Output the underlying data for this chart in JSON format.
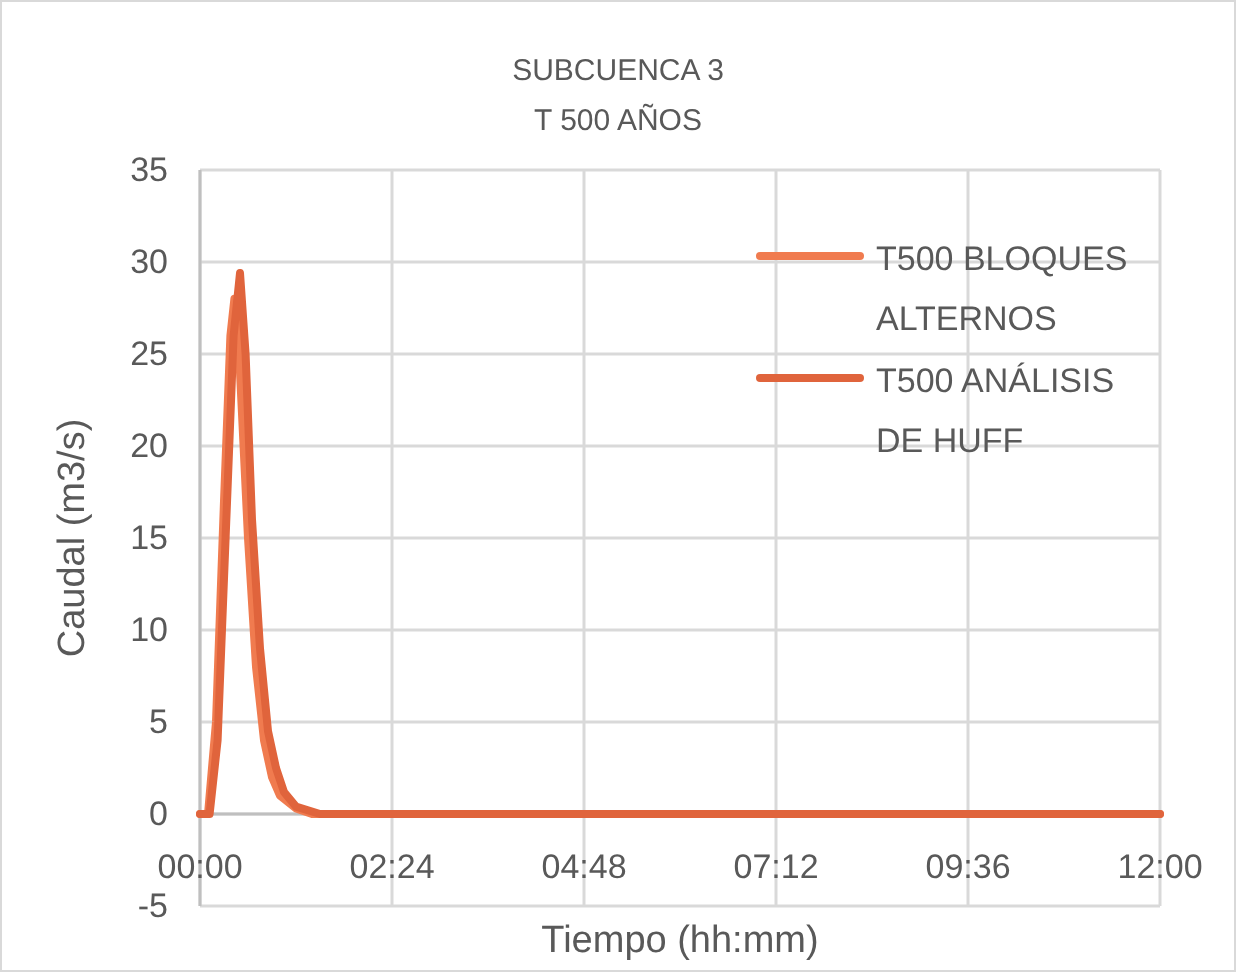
{
  "chart_data": {
    "type": "line",
    "title": "SUBCUENCA 3",
    "subtitle": "T 500 AÑOS",
    "xlabel": "Tiempo (hh:mm)",
    "ylabel": "Caudal (m3/s)",
    "x": [
      0,
      0.1,
      0.2,
      0.3,
      0.38,
      0.43,
      0.5,
      0.6,
      0.7,
      0.8,
      0.9,
      1.0,
      1.2,
      1.4,
      12
    ],
    "series": [
      {
        "name": "T500 BLOQUES ALTERNOS",
        "color": "#f07b4f",
        "values": [
          0,
          0,
          5,
          17,
          26,
          28,
          24,
          15,
          8,
          4,
          2,
          1,
          0.3,
          0,
          0
        ]
      },
      {
        "name": "T500 ANÁLISIS DE HUFF",
        "color": "#e0643c",
        "x": [
          0,
          0.12,
          0.22,
          0.32,
          0.42,
          0.5,
          0.57,
          0.65,
          0.75,
          0.85,
          0.95,
          1.05,
          1.2,
          1.5,
          12
        ],
        "values": [
          0,
          0,
          4,
          15,
          26,
          29.4,
          25,
          16,
          9,
          4.5,
          2.5,
          1.2,
          0.4,
          0,
          0
        ]
      }
    ],
    "xlim": [
      0,
      12
    ],
    "xticks": [
      {
        "value": 0,
        "label": "00:00"
      },
      {
        "value": 2.4,
        "label": "02:24"
      },
      {
        "value": 4.8,
        "label": "04:48"
      },
      {
        "value": 7.2,
        "label": "07:12"
      },
      {
        "value": 9.6,
        "label": "09:36"
      },
      {
        "value": 12,
        "label": "12:00"
      }
    ],
    "ylim": [
      -5,
      35
    ],
    "yticks": [
      -5,
      0,
      5,
      10,
      15,
      20,
      25,
      30,
      35
    ],
    "grid": true,
    "legend": "top right",
    "marker": "none",
    "line_style": "solid"
  }
}
